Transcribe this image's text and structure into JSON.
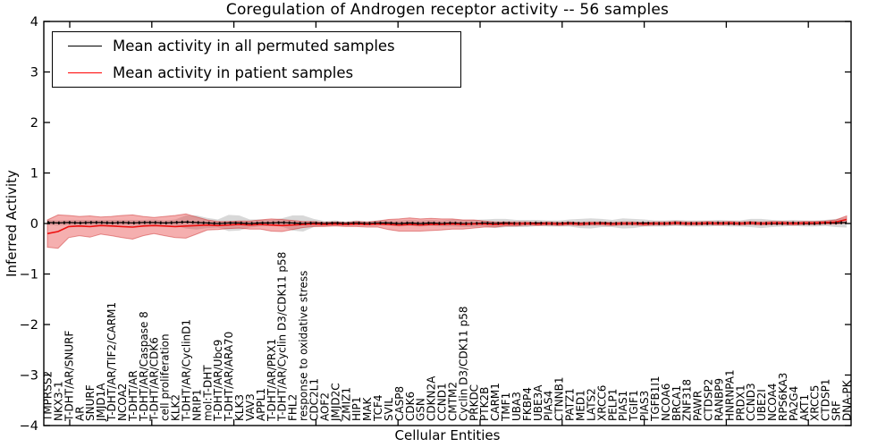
{
  "chart_data": {
    "type": "line",
    "title": "Coregulation of Androgen receptor activity -- 56 samples",
    "xlabel": "Cellular Entities",
    "ylabel": "Inferred Activity",
    "n_samples": 56,
    "ylim": [
      -4,
      4
    ],
    "ytick_labels": [
      "4",
      "3",
      "2",
      "1",
      "0",
      "−1",
      "−2",
      "−3",
      "−4"
    ],
    "grid": false,
    "legend_position": "upper left",
    "categories": [
      "TMPRSS2",
      "NKX3-1",
      "T-DHT/AR/SNURF",
      "AR",
      "SNURF",
      "JMJD1A",
      "T-DHT/AR/TIF2/CARM1",
      "NCOA2",
      "T-DHT/AR",
      "T-DHT/AR/Caspase 8",
      "T-DHT/AR/CDK6",
      "cell proliferation",
      "KLK2",
      "T-DHT/AR/CyclinD1",
      "NRIP1",
      "mol:T-DHT",
      "T-DHT/AR/Ubc9",
      "T-DHT/AR/ARA70",
      "KLK3",
      "VAV3",
      "APPL1",
      "T-DHT/AR/PRX1",
      "T-DHT/AR/Cyclin D3/CDK11 p58",
      "FHL2",
      "response to oxidative stress",
      "CDC2L1",
      "AOF2",
      "JMJD2C",
      "ZMIZ1",
      "HIP1",
      "MAK",
      "TCF4",
      "SVIL",
      "CASP8",
      "CDK6",
      "GSN",
      "CDKN2A",
      "CCND1",
      "CMTM2",
      "Cyclin D3/CDK11 p58",
      "PRKDC",
      "PTK2B",
      "CARM1",
      "TMF1",
      "UBA3",
      "FKBP4",
      "UBE3A",
      "PIAS4",
      "CTNNB1",
      "PATZ1",
      "MED1",
      "LATS2",
      "XRCC6",
      "PELP1",
      "PIAS1",
      "TGIF1",
      "PIAS3",
      "TGFB1I1",
      "NCOA6",
      "BRCA1",
      "ZNF318",
      "PAWR",
      "CTDSP2",
      "RANBP9",
      "HNRNPA1",
      "PRDX1",
      "CCND3",
      "UBE2I",
      "NCOA4",
      "RPS6KA3",
      "PA2G4",
      "AKT1",
      "XRCC5",
      "CTDSP1",
      "SRF",
      "DNA-PK"
    ],
    "series": [
      {
        "name": "Mean activity in all permuted samples",
        "color": "#000000",
        "band_color": "#999999",
        "values": [
          0.02,
          0.01,
          0.02,
          0.01,
          0.02,
          0.02,
          0.01,
          0.02,
          0.01,
          0.02,
          0.02,
          0.01,
          0.02,
          0.03,
          0.02,
          0.01,
          0.0,
          0.01,
          0.01,
          0.0,
          0.01,
          0.01,
          0.02,
          0.01,
          0.0,
          0.01,
          0.0,
          0.01,
          0.0,
          0.01,
          0.0,
          0.01,
          0.01,
          0.0,
          0.01,
          0.0,
          0.01,
          0.0,
          0.01,
          0.0,
          0.0,
          0.01,
          0.0,
          0.01,
          0.0,
          0.0,
          0.01,
          0.0,
          0.0,
          0.01,
          0.0,
          0.0,
          0.01,
          0.0,
          0.0,
          0.0,
          0.01,
          0.0,
          0.0,
          0.01,
          0.0,
          0.0,
          0.0,
          0.01,
          0.0,
          0.0,
          0.01,
          0.0,
          0.0,
          0.0,
          0.01,
          0.0,
          0.0,
          0.01,
          0.01,
          0.02
        ],
        "std": [
          0.05,
          0.05,
          0.05,
          0.06,
          0.05,
          0.05,
          0.06,
          0.05,
          0.06,
          0.05,
          0.06,
          0.05,
          0.06,
          0.13,
          0.14,
          0.1,
          0.08,
          0.16,
          0.15,
          0.08,
          0.07,
          0.06,
          0.08,
          0.15,
          0.16,
          0.08,
          0.05,
          0.05,
          0.04,
          0.05,
          0.04,
          0.05,
          0.05,
          0.06,
          0.06,
          0.06,
          0.06,
          0.06,
          0.07,
          0.07,
          0.07,
          0.07,
          0.09,
          0.08,
          0.07,
          0.07,
          0.06,
          0.06,
          0.06,
          0.07,
          0.09,
          0.1,
          0.08,
          0.07,
          0.1,
          0.09,
          0.07,
          0.06,
          0.06,
          0.06,
          0.06,
          0.06,
          0.06,
          0.06,
          0.06,
          0.06,
          0.08,
          0.09,
          0.07,
          0.06,
          0.06,
          0.06,
          0.06,
          0.06,
          0.08,
          0.1
        ]
      },
      {
        "name": "Mean activity in patient samples",
        "color": "#ee1111",
        "band_color": "#e64040",
        "values": [
          -0.2,
          -0.16,
          -0.06,
          -0.05,
          -0.06,
          -0.04,
          -0.05,
          -0.06,
          -0.07,
          -0.05,
          -0.04,
          -0.05,
          -0.06,
          -0.05,
          -0.04,
          -0.03,
          -0.04,
          -0.03,
          -0.02,
          -0.03,
          -0.02,
          -0.03,
          -0.04,
          -0.03,
          -0.02,
          -0.01,
          -0.02,
          -0.01,
          -0.02,
          -0.01,
          -0.02,
          -0.01,
          -0.02,
          -0.03,
          -0.02,
          -0.03,
          -0.02,
          -0.02,
          -0.01,
          -0.02,
          -0.01,
          -0.01,
          -0.02,
          -0.01,
          -0.01,
          0.0,
          -0.01,
          0.0,
          -0.01,
          0.0,
          -0.01,
          0.0,
          0.0,
          -0.01,
          0.0,
          0.0,
          -0.01,
          0.0,
          0.0,
          0.01,
          0.0,
          0.0,
          0.01,
          0.0,
          0.01,
          0.0,
          0.01,
          0.0,
          0.01,
          0.01,
          0.0,
          0.01,
          0.01,
          0.02,
          0.03,
          0.08
        ],
        "std": [
          0.27,
          0.33,
          0.22,
          0.19,
          0.21,
          0.17,
          0.19,
          0.22,
          0.24,
          0.19,
          0.16,
          0.19,
          0.22,
          0.24,
          0.17,
          0.1,
          0.08,
          0.07,
          0.07,
          0.08,
          0.09,
          0.12,
          0.12,
          0.09,
          0.06,
          0.05,
          0.04,
          0.04,
          0.04,
          0.05,
          0.05,
          0.06,
          0.1,
          0.12,
          0.13,
          0.12,
          0.12,
          0.11,
          0.1,
          0.09,
          0.08,
          0.06,
          0.05,
          0.04,
          0.04,
          0.03,
          0.03,
          0.03,
          0.03,
          0.03,
          0.03,
          0.03,
          0.03,
          0.03,
          0.03,
          0.03,
          0.03,
          0.03,
          0.03,
          0.03,
          0.03,
          0.03,
          0.03,
          0.03,
          0.03,
          0.03,
          0.03,
          0.03,
          0.03,
          0.03,
          0.03,
          0.03,
          0.03,
          0.03,
          0.04,
          0.07
        ]
      }
    ]
  }
}
